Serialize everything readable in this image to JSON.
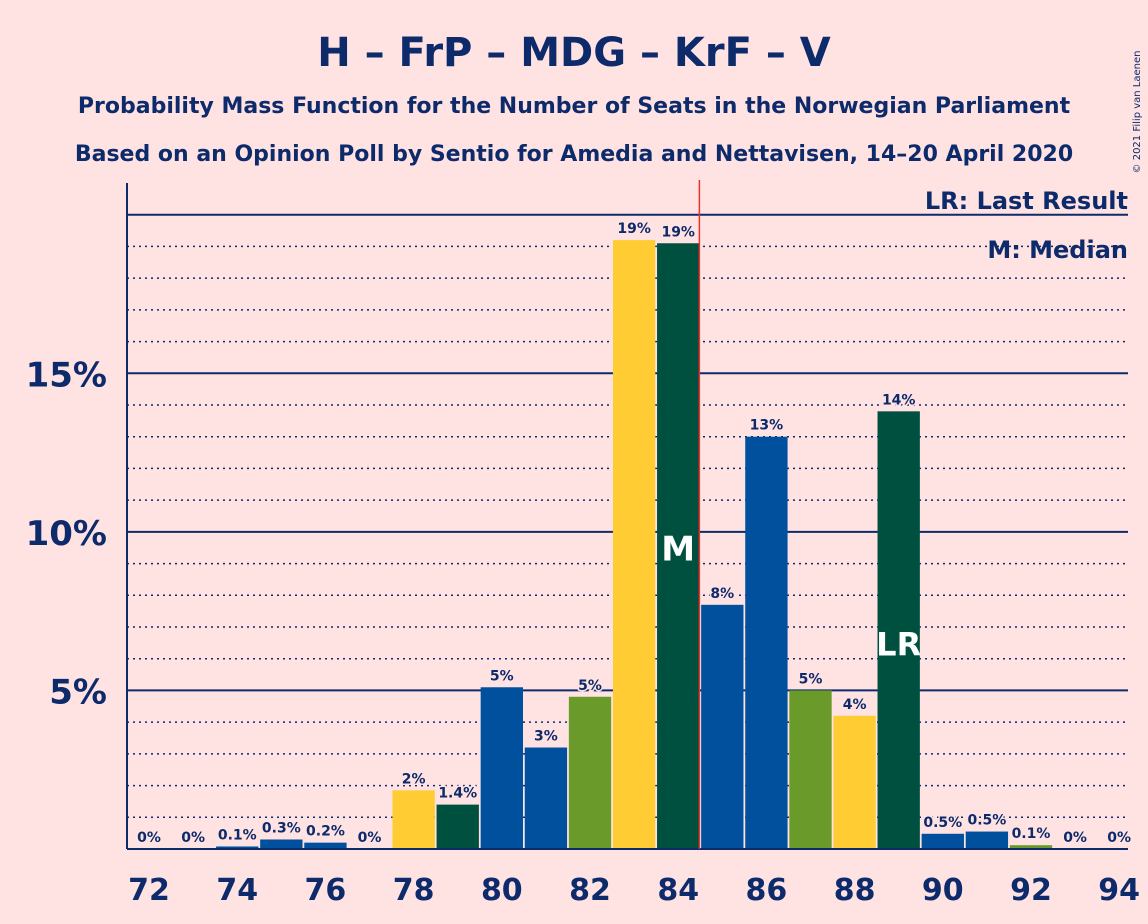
{
  "title": "H – FrP – MDG – KrF – V",
  "subtitle1": "Probability Mass Function for the Number of Seats in the Norwegian Parliament",
  "subtitle2": "Based on an Opinion Poll by Sentio for Amedia and Nettavisen, 14–20 April 2020",
  "copyright": "© 2021 Filip van Laenen",
  "legend": {
    "lr": "LR: Last Result",
    "m": "M: Median"
  },
  "colors": {
    "background": "#ffe3e3",
    "text": "#0d2a6b",
    "H": "#00509e",
    "FrP": "#005040",
    "MDG": "#6a9a2a",
    "KrF": "#ffcc33",
    "majority_line": "#e8322b"
  },
  "chart_data": {
    "type": "bar",
    "xlabel": "",
    "ylabel": "",
    "ylim": [
      0,
      21
    ],
    "y_ticks": [
      0,
      5,
      10,
      15
    ],
    "y_tick_labels": [
      "",
      "5%",
      "10%",
      "15%"
    ],
    "x_ticks": [
      72,
      74,
      76,
      78,
      80,
      82,
      84,
      86,
      88,
      90,
      92,
      94
    ],
    "x_tick_labels": [
      "72",
      "74",
      "76",
      "78",
      "80",
      "82",
      "84",
      "86",
      "88",
      "90",
      "92",
      "94"
    ],
    "majority_after": 84.5,
    "median_seat": 84,
    "median_label": "M",
    "last_result_seat": 89,
    "last_result_label": "LR",
    "bars": [
      {
        "seat": 72,
        "value": 0,
        "label": "0%",
        "party": "KrF"
      },
      {
        "seat": 73,
        "value": 0,
        "label": "0%",
        "party": "FrP"
      },
      {
        "seat": 74,
        "value": 0.08,
        "label": "0.1%",
        "party": "H"
      },
      {
        "seat": 75,
        "value": 0.3,
        "label": "0.3%",
        "party": "H"
      },
      {
        "seat": 76,
        "value": 0.2,
        "label": "0.2%",
        "party": "H"
      },
      {
        "seat": 77,
        "value": 0,
        "label": "0%",
        "party": "MDG"
      },
      {
        "seat": 78,
        "value": 1.85,
        "label": "2%",
        "party": "KrF"
      },
      {
        "seat": 79,
        "value": 1.4,
        "label": "1.4%",
        "party": "FrP"
      },
      {
        "seat": 80,
        "value": 5.1,
        "label": "5%",
        "party": "H"
      },
      {
        "seat": 81,
        "value": 3.2,
        "label": "3%",
        "party": "H"
      },
      {
        "seat": 82,
        "value": 4.8,
        "label": "5%",
        "party": "MDG"
      },
      {
        "seat": 83,
        "value": 19.2,
        "label": "19%",
        "party": "KrF"
      },
      {
        "seat": 84,
        "value": 19.1,
        "label": "19%",
        "party": "FrP"
      },
      {
        "seat": 85,
        "value": 7.7,
        "label": "8%",
        "party": "H"
      },
      {
        "seat": 86,
        "value": 13.0,
        "label": "13%",
        "party": "H"
      },
      {
        "seat": 87,
        "value": 5.0,
        "label": "5%",
        "party": "MDG"
      },
      {
        "seat": 88,
        "value": 4.2,
        "label": "4%",
        "party": "KrF"
      },
      {
        "seat": 89,
        "value": 13.8,
        "label": "14%",
        "party": "FrP"
      },
      {
        "seat": 90,
        "value": 0.48,
        "label": "0.5%",
        "party": "H"
      },
      {
        "seat": 91,
        "value": 0.55,
        "label": "0.5%",
        "party": "H"
      },
      {
        "seat": 92,
        "value": 0.12,
        "label": "0.1%",
        "party": "MDG"
      },
      {
        "seat": 93,
        "value": 0,
        "label": "0%",
        "party": "KrF"
      },
      {
        "seat": 94,
        "value": 0,
        "label": "0%",
        "party": "FrP"
      }
    ]
  }
}
